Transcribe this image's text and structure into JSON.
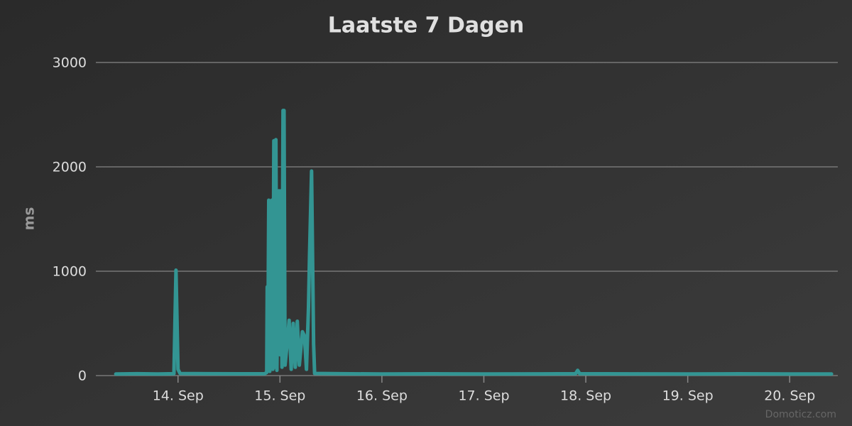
{
  "chart_data": {
    "type": "line",
    "title": "Laatste 7 Dagen",
    "y_label": "ms",
    "credits": "Domoticz.com",
    "color": "#339593",
    "x": [
      13.39,
      13.6,
      13.8,
      13.96,
      13.98,
      14.0,
      14.02,
      14.3,
      14.6,
      14.85,
      14.87,
      14.875,
      14.88,
      14.89,
      14.9,
      14.92,
      14.93,
      14.94,
      14.95,
      14.96,
      14.97,
      14.99,
      15.0,
      15.01,
      15.02,
      15.03,
      15.04,
      15.05,
      15.07,
      15.09,
      15.11,
      15.13,
      15.15,
      15.17,
      15.19,
      15.22,
      15.24,
      15.26,
      15.28,
      15.29,
      15.31,
      15.33,
      15.34,
      15.6,
      16.0,
      16.5,
      17.0,
      17.5,
      17.9,
      17.92,
      17.94,
      18.5,
      19.0,
      19.5,
      20.0,
      20.41
    ],
    "values": [
      15,
      18,
      15,
      18,
      1010,
      60,
      20,
      18,
      17,
      18,
      30,
      850,
      60,
      1680,
      40,
      1680,
      60,
      2250,
      80,
      2260,
      50,
      1770,
      200,
      1770,
      80,
      2540,
      2540,
      100,
      300,
      530,
      60,
      500,
      80,
      520,
      100,
      420,
      380,
      60,
      660,
      1150,
      1960,
      300,
      20,
      18,
      15,
      17,
      15,
      16,
      18,
      50,
      18,
      16,
      15,
      17,
      15,
      15
    ],
    "xlim": [
      13.194,
      20.472
    ],
    "xticks": [
      {
        "value": 14,
        "label": "14. Sep"
      },
      {
        "value": 15,
        "label": "15. Sep"
      },
      {
        "value": 16,
        "label": "16. Sep"
      },
      {
        "value": 17,
        "label": "17. Sep"
      },
      {
        "value": 18,
        "label": "18. Sep"
      },
      {
        "value": 19,
        "label": "19. Sep"
      },
      {
        "value": 20,
        "label": "20. Sep"
      }
    ],
    "ylim": [
      0,
      3000
    ],
    "yticks": [
      0,
      1000,
      2000,
      3000
    ],
    "grid": true
  }
}
